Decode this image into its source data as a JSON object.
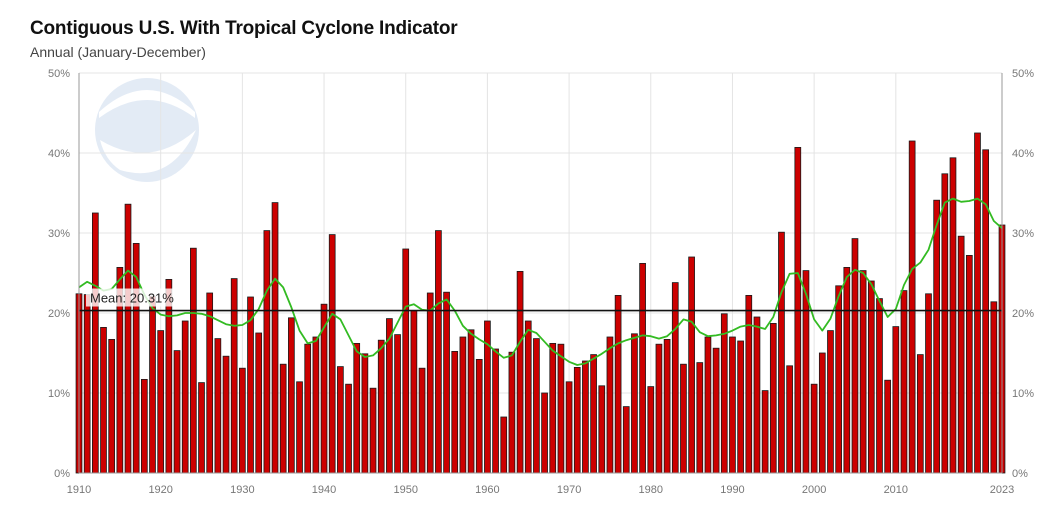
{
  "header": {
    "title": "Contiguous U.S. With Tropical Cyclone Indicator",
    "subtitle": "Annual (January-December)"
  },
  "colors": {
    "bar": "#cc0000",
    "bar_stroke": "#1a1a1a",
    "smooth": "#33bb22",
    "mean": "#111111",
    "grid": "#e4e4e4"
  },
  "chart_data": {
    "type": "bar",
    "title": "Contiguous U.S. With Tropical Cyclone Indicator",
    "subtitle": "Annual (January-December)",
    "start_year": 1910,
    "end_year": 2023,
    "ylim": [
      0,
      50
    ],
    "yticks": [
      0,
      10,
      20,
      30,
      40,
      50
    ],
    "ytick_labels": [
      "0%",
      "10%",
      "20%",
      "30%",
      "40%",
      "50%"
    ],
    "xticks": [
      1910,
      1920,
      1930,
      1940,
      1950,
      1960,
      1970,
      1980,
      1990,
      2000,
      2010,
      2023
    ],
    "mean": 20.31,
    "mean_label": "Mean: 20.31%",
    "grid": true,
    "values": [
      22.4,
      22.3,
      32.5,
      18.2,
      16.7,
      25.7,
      33.6,
      28.7,
      11.7,
      22.1,
      17.8,
      24.2,
      15.3,
      19.0,
      28.1,
      11.3,
      22.5,
      16.8,
      14.6,
      24.3,
      13.1,
      22.0,
      17.5,
      30.3,
      33.8,
      13.6,
      19.4,
      11.4,
      16.1,
      17.0,
      21.1,
      29.8,
      13.3,
      11.1,
      16.2,
      14.9,
      10.6,
      16.6,
      19.3,
      17.3,
      28.0,
      20.3,
      13.1,
      22.5,
      30.3,
      22.6,
      15.2,
      17.0,
      17.9,
      14.2,
      19.0,
      15.5,
      7.0,
      15.1,
      25.2,
      19.0,
      16.8,
      10.0,
      16.2,
      16.1,
      11.4,
      13.2,
      14.0,
      14.8,
      10.9,
      17.0,
      22.2,
      8.3,
      17.4,
      26.2,
      10.8,
      16.1,
      16.7,
      23.8,
      13.6,
      27.0,
      13.8,
      17.0,
      15.6,
      19.9,
      17.0,
      16.5,
      22.2,
      19.5,
      10.3,
      18.7,
      30.1,
      13.4,
      40.7,
      25.3,
      11.1,
      15.0,
      17.8,
      23.4,
      25.7,
      29.3,
      25.3,
      24.0,
      21.8,
      11.6,
      18.3,
      22.8,
      41.5,
      14.8,
      22.4,
      34.1,
      37.4,
      39.4,
      29.6,
      27.2,
      42.5,
      40.4,
      21.4,
      31.0
    ],
    "smoothed": [
      23.2,
      23.9,
      23.4,
      22.8,
      23.0,
      24.2,
      25.3,
      24.5,
      22.3,
      20.6,
      19.8,
      19.6,
      19.7,
      20.0,
      20.0,
      19.9,
      19.6,
      19.1,
      18.6,
      18.4,
      18.5,
      19.1,
      20.5,
      22.8,
      24.3,
      23.2,
      20.7,
      17.8,
      16.2,
      16.5,
      18.2,
      19.9,
      19.2,
      17.2,
      15.2,
      14.5,
      14.7,
      15.6,
      16.8,
      18.8,
      20.8,
      21.1,
      20.4,
      20.3,
      21.2,
      21.7,
      20.3,
      18.4,
      17.4,
      16.7,
      16.1,
      15.2,
      14.4,
      14.7,
      16.4,
      17.9,
      17.5,
      16.4,
      15.3,
      14.6,
      13.9,
      13.5,
      13.7,
      14.3,
      14.9,
      15.6,
      16.2,
      16.6,
      16.9,
      17.2,
      17.1,
      16.8,
      17.1,
      18.0,
      19.2,
      18.9,
      17.6,
      17.1,
      17.2,
      17.4,
      17.8,
      18.3,
      18.5,
      18.3,
      18.0,
      19.5,
      22.6,
      24.9,
      25.0,
      22.4,
      19.2,
      17.8,
      19.3,
      22.1,
      24.5,
      25.4,
      25.0,
      23.6,
      21.5,
      19.5,
      20.5,
      23.5,
      25.5,
      26.3,
      27.9,
      31.0,
      33.8,
      34.3,
      33.9,
      34.0,
      34.3,
      33.6,
      31.5,
      30.6
    ]
  }
}
